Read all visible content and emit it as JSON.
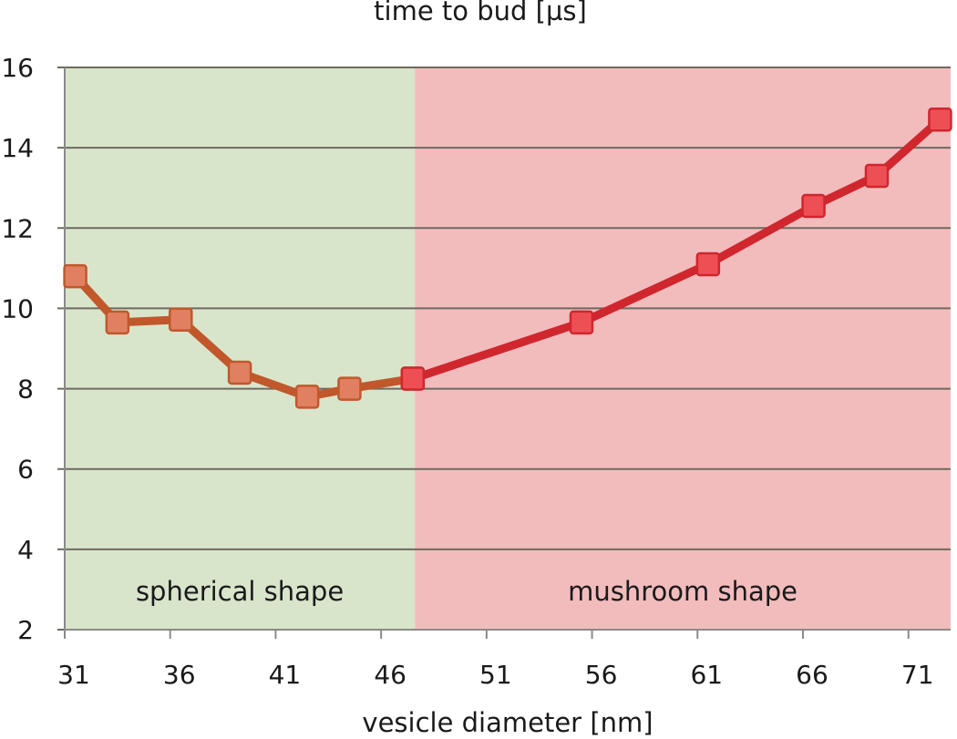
{
  "chart_data": {
    "type": "line",
    "ylabel": "time to bud [µs]",
    "xlabel": "vesicle diameter [nm]",
    "xlim": [
      31,
      73
    ],
    "ylim": [
      2,
      16
    ],
    "x_ticks": [
      31,
      36,
      41,
      46,
      51,
      56,
      61,
      66,
      71
    ],
    "y_ticks": [
      2,
      4,
      6,
      8,
      10,
      12,
      14,
      16
    ],
    "grid": "horizontal",
    "regions": [
      {
        "label": "spherical shape",
        "x_range": [
          31,
          47.6
        ],
        "color": "#d9e5cb"
      },
      {
        "label": "mushroom shape",
        "x_range": [
          47.6,
          73
        ],
        "color": "#f2bcbd"
      }
    ],
    "series": [
      {
        "color": "#c0582c",
        "marker_color": "#e08060",
        "points": [
          [
            31.5,
            10.8
          ],
          [
            33.5,
            9.65
          ],
          [
            36.5,
            9.72
          ],
          [
            39.3,
            8.4
          ],
          [
            42.5,
            7.8
          ],
          [
            44.5,
            8.0
          ],
          [
            47.5,
            8.25
          ]
        ]
      },
      {
        "color": "#d0262e",
        "marker_color": "#ee4f55",
        "points": [
          [
            47.5,
            8.25
          ],
          [
            55.5,
            9.65
          ],
          [
            61.5,
            11.1
          ],
          [
            66.5,
            12.55
          ],
          [
            69.5,
            13.3
          ],
          [
            72.5,
            14.7
          ]
        ]
      }
    ]
  }
}
